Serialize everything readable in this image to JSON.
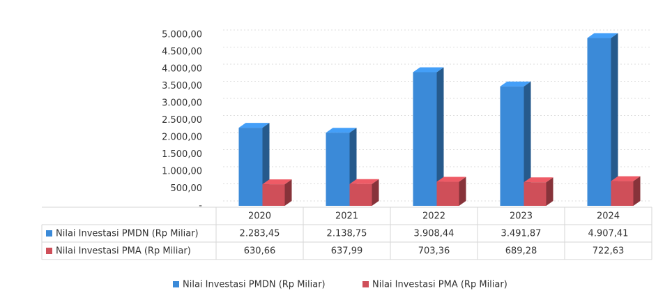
{
  "chart_data": {
    "type": "bar3d",
    "categories": [
      "2020",
      "2021",
      "2022",
      "2023",
      "2024"
    ],
    "series": [
      {
        "name": "Nilai Investasi PMDN (Rp Miliar)",
        "color": "#3b8ad8",
        "values": [
          2283.45,
          2138.75,
          3908.44,
          3491.87,
          4907.41
        ],
        "value_labels": [
          "2.283,45",
          "2.138,75",
          "3.908,44",
          "3.491,87",
          "4.907,41"
        ]
      },
      {
        "name": "Nilai Investasi PMA (Rp Miliar)",
        "color": "#cf4f59",
        "values": [
          630.66,
          637.99,
          703.36,
          689.28,
          722.63
        ],
        "value_labels": [
          "630,66",
          "637,99",
          "703,36",
          "689,28",
          "722,63"
        ]
      }
    ],
    "ylim": [
      0,
      5000
    ],
    "yticks": [
      {
        "value": 0,
        "label": "-"
      },
      {
        "value": 500,
        "label": "500,00"
      },
      {
        "value": 1000,
        "label": "1.000,00"
      },
      {
        "value": 1500,
        "label": "1.500,00"
      },
      {
        "value": 2000,
        "label": "2.000,00"
      },
      {
        "value": 2500,
        "label": "2.500,00"
      },
      {
        "value": 3000,
        "label": "3.000,00"
      },
      {
        "value": 3500,
        "label": "3.500,00"
      },
      {
        "value": 4000,
        "label": "4.000,00"
      },
      {
        "value": 4500,
        "label": "4.500,00"
      },
      {
        "value": 5000,
        "label": "5.000,00"
      }
    ],
    "grid": true,
    "legend": "bottom"
  }
}
